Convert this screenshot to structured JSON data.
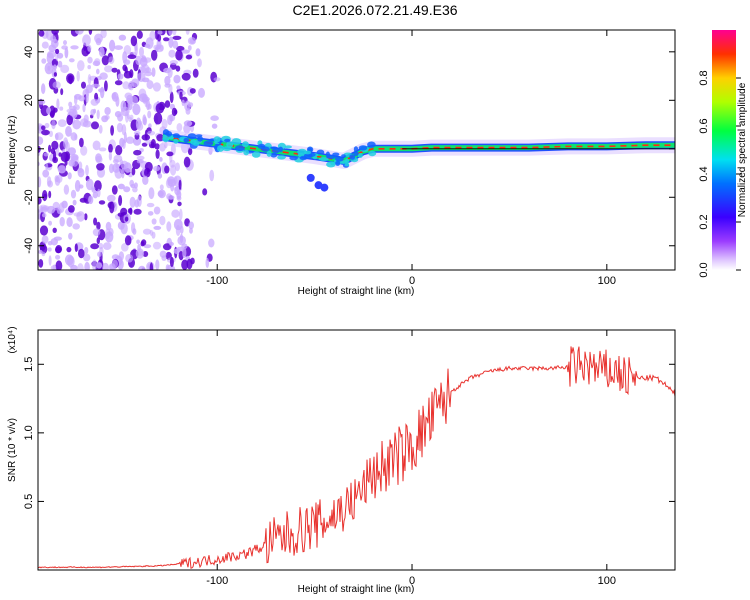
{
  "title": "C2E1.2026.072.21.49.E36",
  "colors": {
    "snr_line": "#e8322e",
    "noise_dark": "#5a00d0",
    "noise_light": "#c8a8ff"
  },
  "chart_data": [
    {
      "type": "heatmap",
      "name": "spectrogram",
      "xlabel": "Height of straight line (km)",
      "ylabel": "Frequency (Hz)",
      "xlim": [
        -192,
        135
      ],
      "ylim": [
        -50,
        49
      ],
      "xticks": [
        -100,
        0,
        100
      ],
      "xtick_labels": [
        "-100",
        "0",
        "100"
      ],
      "yticks": [
        -40,
        -20,
        0,
        20,
        40
      ],
      "ytick_labels": [
        "-40",
        "-20",
        "0",
        "20",
        "40"
      ],
      "colorbar": {
        "label": "Normalized spectral amplitude",
        "range": [
          0,
          1
        ],
        "ticks": [
          0.0,
          0.2,
          0.4,
          0.6,
          0.8
        ],
        "tick_labels": [
          "0.0",
          "0.2",
          "0.4",
          "0.6",
          "0.8"
        ]
      },
      "signal_track": {
        "x": [
          -128,
          -120,
          -110,
          -100,
          -90,
          -80,
          -70,
          -60,
          -50,
          -42,
          -35,
          -30,
          -25,
          -20,
          -10,
          0,
          10,
          20,
          40,
          60,
          80,
          100,
          120,
          135
        ],
        "y": [
          5,
          4,
          3,
          2,
          1,
          0,
          -1,
          -2,
          -3,
          -4,
          -5,
          -3,
          -1,
          0,
          0,
          0,
          0.5,
          0.5,
          0.5,
          0.5,
          1,
          1,
          1.5,
          1.5
        ]
      },
      "noise_region_x": [
        -192,
        -112
      ]
    },
    {
      "type": "line",
      "name": "snr",
      "xlabel": "Height of straight line (km)",
      "ylabel": "SNR (10 * v/v)",
      "multiplier": "(x10⁴)",
      "xlim": [
        -192,
        135
      ],
      "ylim": [
        0,
        1.75
      ],
      "xticks": [
        -100,
        0,
        100
      ],
      "xtick_labels": [
        "-100",
        "0",
        "100"
      ],
      "yticks": [
        0.5,
        1.0,
        1.5
      ],
      "ytick_labels": [
        "0.5",
        "1.0",
        "1.5"
      ],
      "series": [
        {
          "name": "SNR",
          "x": [
            -192,
            -160,
            -130,
            -115,
            -100,
            -85,
            -75,
            -65,
            -55,
            -45,
            -40,
            -35,
            -30,
            -25,
            -20,
            -15,
            -10,
            -5,
            0,
            5,
            10,
            15,
            20,
            30,
            40,
            50,
            60,
            70,
            80,
            85,
            90,
            95,
            100,
            105,
            110,
            115,
            120,
            125,
            130,
            135
          ],
          "y": [
            0.02,
            0.02,
            0.03,
            0.05,
            0.08,
            0.12,
            0.18,
            0.25,
            0.3,
            0.35,
            0.4,
            0.45,
            0.5,
            0.6,
            0.7,
            0.75,
            0.8,
            0.85,
            0.9,
            1.0,
            1.1,
            1.2,
            1.3,
            1.4,
            1.45,
            1.47,
            1.47,
            1.47,
            1.48,
            1.48,
            1.5,
            1.45,
            1.45,
            1.45,
            1.4,
            1.4,
            1.4,
            1.4,
            1.35,
            1.28
          ]
        }
      ]
    }
  ]
}
